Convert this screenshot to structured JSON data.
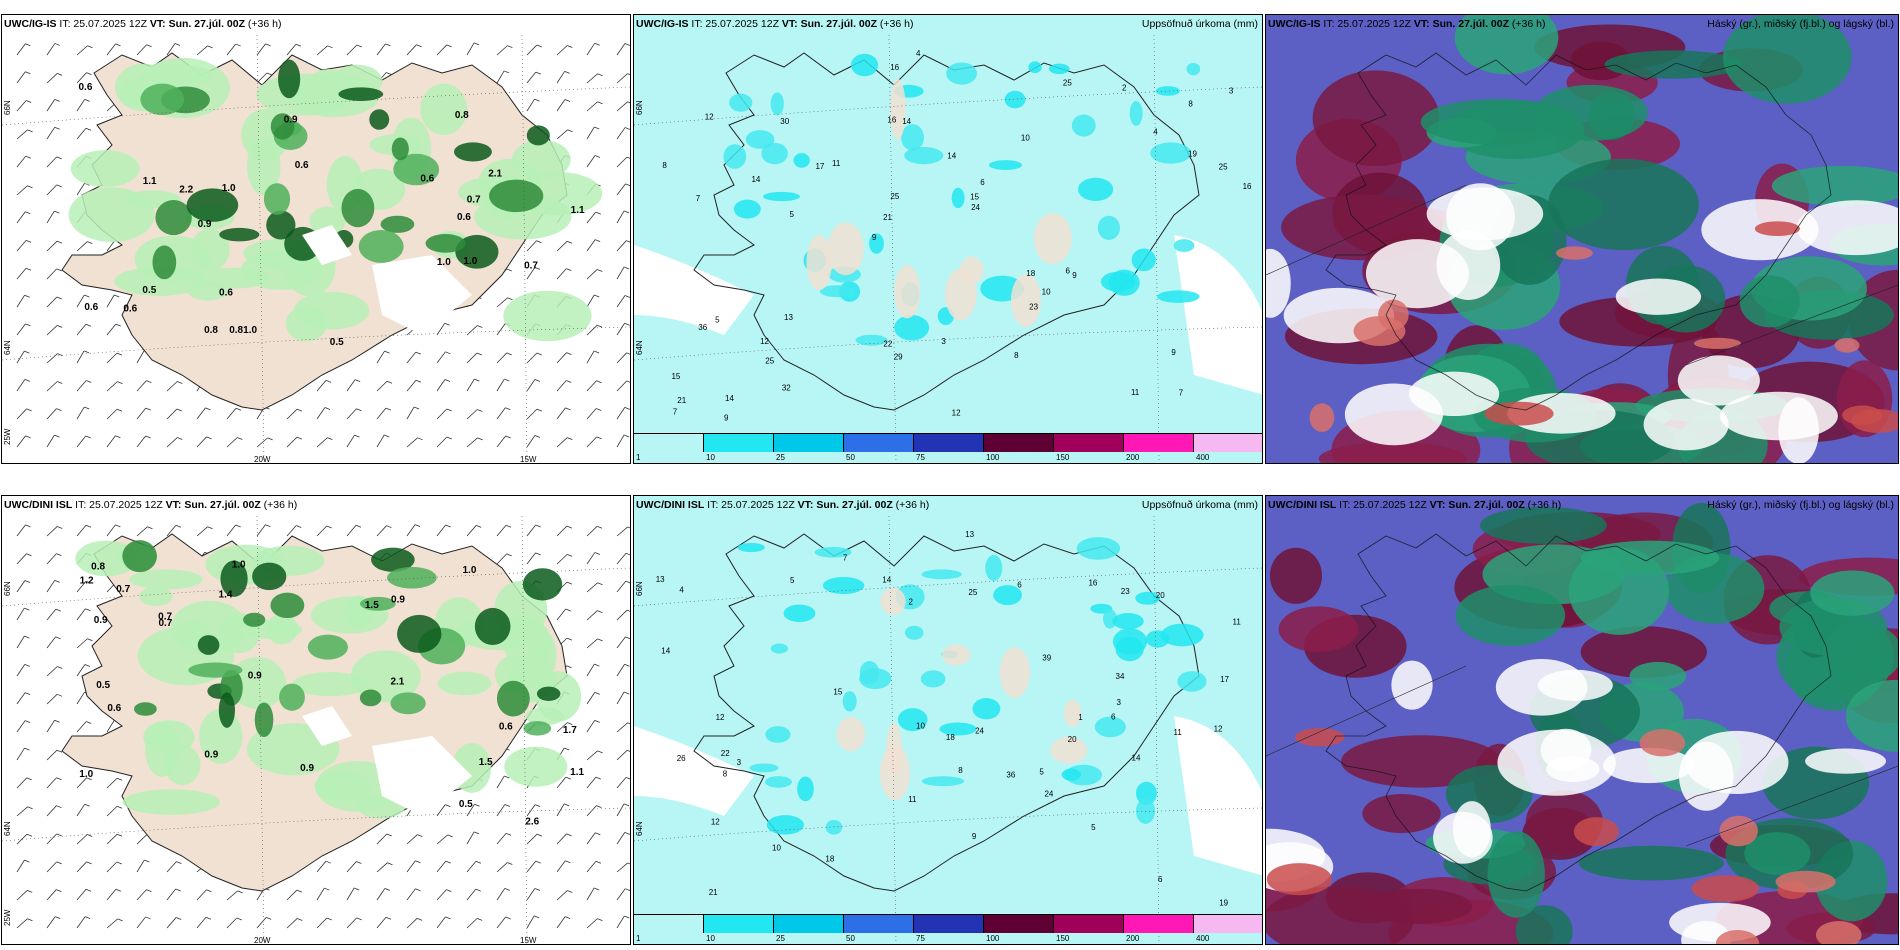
{
  "panels": [
    {
      "id": "top-left",
      "model": "UWC/IG-IS",
      "init": " IT: 25.07.2025 12Z ",
      "vt_label": "VT: Sun. 27.júl. 00Z",
      "lead": " (+36 h)",
      "right_title": "",
      "lat_labels": [
        "66N",
        "64N",
        "25W"
      ],
      "lon_labels": [
        "20W",
        "15W"
      ],
      "values": [
        "0.9",
        "1.0",
        "0.8",
        "0.7",
        "0.6",
        "1.0",
        "2.2",
        "1.0",
        "0.6",
        "0.5",
        "0.8",
        "0.7",
        "0.5",
        "1.1",
        "0.6",
        "0.9",
        "2.1",
        "0.8",
        "0.6",
        "0.6",
        "1.0",
        "0.6",
        "1.1",
        "0.6"
      ]
    },
    {
      "id": "top-middle",
      "model": "UWC/IG-IS",
      "init": " IT: 25.07.2025 12Z ",
      "vt_label": "VT: Sun. 27.júl. 00Z",
      "lead": " (+36 h)",
      "right_title": "Uppsöfnuð úrkoma (mm)",
      "lat_labels": [
        "66N",
        "64N"
      ],
      "values": [
        "7",
        "7",
        "8",
        "9",
        "10",
        "14",
        "16",
        "14",
        "5",
        "11",
        "15",
        "25",
        "14",
        "6",
        "9",
        "12",
        "16",
        "16",
        "18",
        "19",
        "21",
        "22",
        "25",
        "30",
        "25",
        "13",
        "11",
        "9",
        "6",
        "12",
        "17",
        "14",
        "23",
        "32",
        "25",
        "15",
        "21",
        "29",
        "24",
        "36",
        "4",
        "3",
        "10",
        "8",
        "12",
        "9",
        "7",
        "3",
        "2",
        "4",
        "5",
        "8"
      ],
      "legend_labels": [
        "1",
        "10",
        "25",
        "50",
        "75",
        "100",
        "150",
        "200",
        "400"
      ]
    },
    {
      "id": "top-right",
      "model": "UWC/IG-IS",
      "init": " IT: 25.07.2025 12Z ",
      "vt_label": "VT: Sun. 27.júl. 00Z",
      "lead": " (+36 h)",
      "right_title": "Háský (gr.), miðský (fj.bl.) og lágský (bl.)"
    },
    {
      "id": "bottom-left",
      "model": "UWC/DINI ISL",
      "init": " IT: 25.07.2025 12Z ",
      "vt_label": "VT: Sun. 27.júl. 00Z",
      "lead": " (+36 h)",
      "right_title": "",
      "lat_labels": [
        "66N",
        "64N",
        "25W"
      ],
      "lon_labels": [
        "20W",
        "15W"
      ],
      "values": [
        "0.7",
        "0.5",
        "2.1",
        "1.0",
        "0.9",
        "0.8",
        "0.9",
        "1.1",
        "1.0",
        "0.7",
        "0.9",
        "1.5",
        "0.6",
        "0.9",
        "0.6",
        "1.4",
        "1.2",
        "0.5",
        "0.7",
        "1.0",
        "2.6",
        "0.9",
        "1.7",
        "1.5"
      ]
    },
    {
      "id": "bottom-middle",
      "model": "UWC/DINI ISL",
      "init": " IT: 25.07.2025 12Z ",
      "vt_label": "VT: Sun. 27.júl. 00Z",
      "lead": " (+36 h)",
      "right_title": "Uppsöfnuð úrkoma (mm)",
      "lat_labels": [
        "66N",
        "64N"
      ],
      "values": [
        "10",
        "12",
        "14",
        "13",
        "12",
        "11",
        "6",
        "23",
        "14",
        "21",
        "19",
        "24",
        "18",
        "34",
        "26",
        "20",
        "36",
        "20",
        "39",
        "16",
        "11",
        "18",
        "25",
        "22",
        "24",
        "7",
        "5",
        "3",
        "2",
        "8",
        "6",
        "10",
        "12",
        "15",
        "17",
        "13",
        "9",
        "4",
        "1",
        "5",
        "3",
        "14",
        "11",
        "8",
        "5",
        "6"
      ],
      "legend_labels": [
        "1",
        "10",
        "25",
        "50",
        "75",
        "100",
        "150",
        "200",
        "400"
      ]
    },
    {
      "id": "bottom-right",
      "model": "UWC/DINI ISL",
      "init": " IT: 25.07.2025 12Z ",
      "vt_label": "VT: Sun. 27.júl. 00Z",
      "lead": " (+36 h)",
      "right_title": "Háský (gr.), miðský (fj.bl.) og lágský (bl.)"
    }
  ],
  "colors": {
    "land": "#f0e1d2",
    "sea_precip_light": "#b8f5f5",
    "precip_cyan": "#22e6f0",
    "rain_green_light": "#b7f0b7",
    "rain_green_dark": "#0b5a1c",
    "cloud_high": "#1f8f6a",
    "cloud_mid": "#7a1942",
    "cloud_low": "#5c5fc4",
    "legend": [
      "#b8f5f5",
      "#22e6f0",
      "#00c8e8",
      "#2d6fe6",
      "#2233b3",
      "#5e0033",
      "#a0005a",
      "#ff18b5",
      "#f5b8f0"
    ]
  }
}
